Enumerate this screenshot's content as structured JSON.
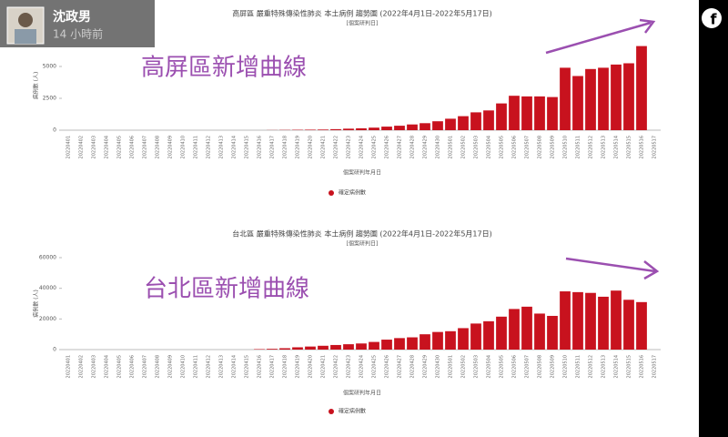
{
  "post": {
    "author": "沈政男",
    "time": "14 小時前"
  },
  "chart_data": [
    {
      "type": "bar",
      "title": "高屏區 嚴重特殊傳染性肺炎 本土病例 趨勢圖 (2022年4月1日-2022年5月17日)",
      "subtitle": "[個案研判日]",
      "y_label": "病例數 (人)",
      "x_label": "個案研判年月日",
      "annotation": "高屏區新增曲線",
      "series": [
        {
          "name": "確定病例數",
          "color": "#c8121e",
          "values": [
            0,
            0,
            0,
            0,
            0,
            0,
            0,
            0,
            0,
            0,
            0,
            0,
            0,
            0,
            0,
            0,
            10,
            20,
            30,
            40,
            50,
            80,
            120,
            150,
            200,
            280,
            350,
            450,
            550,
            700,
            900,
            1100,
            1400,
            1550,
            2100,
            2700,
            2650,
            2650,
            2600,
            4900,
            4250,
            4800,
            4900,
            5150,
            5250,
            6600,
            0
          ]
        }
      ],
      "categories": [
        "20220401",
        "20220402",
        "20220403",
        "20220404",
        "20220405",
        "20220406",
        "20220407",
        "20220408",
        "20220409",
        "20220410",
        "20220411",
        "20220412",
        "20220413",
        "20220414",
        "20220415",
        "20220416",
        "20220417",
        "20220418",
        "20220419",
        "20220420",
        "20220421",
        "20220422",
        "20220423",
        "20220424",
        "20220425",
        "20220426",
        "20220427",
        "20220428",
        "20220429",
        "20220430",
        "20220501",
        "20220502",
        "20220503",
        "20220504",
        "20220505",
        "20220506",
        "20220507",
        "20220508",
        "20220509",
        "20220510",
        "20220511",
        "20220512",
        "20220513",
        "20220514",
        "20220515",
        "20220516",
        "20220517"
      ],
      "ylim": [
        0,
        7000
      ],
      "yticks": [
        0,
        2500,
        5000
      ],
      "grid": false
    },
    {
      "type": "bar",
      "title": "台北區 嚴重特殊傳染性肺炎 本土病例 趨勢圖 (2022年4月1日-2022年5月17日)",
      "subtitle": "[個案研判日]",
      "y_label": "病例數 (人)",
      "x_label": "個案研判年月日",
      "annotation": "台北區新增曲線",
      "series": [
        {
          "name": "確定病例數",
          "color": "#c8121e",
          "values": [
            0,
            0,
            0,
            0,
            0,
            0,
            0,
            0,
            0,
            0,
            0,
            0,
            0,
            0,
            0,
            300,
            500,
            900,
            1500,
            2000,
            2500,
            3000,
            3500,
            4000,
            5000,
            6500,
            7500,
            8000,
            10000,
            11500,
            12000,
            14000,
            17000,
            18500,
            21500,
            26500,
            28000,
            23500,
            22000,
            38000,
            37500,
            37000,
            34500,
            38500,
            32500,
            31000,
            0
          ]
        }
      ],
      "categories": [
        "20220401",
        "20220402",
        "20220403",
        "20220404",
        "20220405",
        "20220406",
        "20220407",
        "20220408",
        "20220409",
        "20220410",
        "20220411",
        "20220412",
        "20220413",
        "20220414",
        "20220415",
        "20220416",
        "20220417",
        "20220418",
        "20220419",
        "20220420",
        "20220421",
        "20220422",
        "20220423",
        "20220424",
        "20220425",
        "20220426",
        "20220427",
        "20220428",
        "20220429",
        "20220430",
        "20220501",
        "20220502",
        "20220503",
        "20220504",
        "20220505",
        "20220506",
        "20220507",
        "20220508",
        "20220509",
        "20220510",
        "20220511",
        "20220512",
        "20220513",
        "20220514",
        "20220515",
        "20220516",
        "20220517"
      ],
      "ylim": [
        0,
        60000
      ],
      "yticks": [
        0,
        20000,
        40000,
        60000
      ],
      "grid": false
    }
  ]
}
